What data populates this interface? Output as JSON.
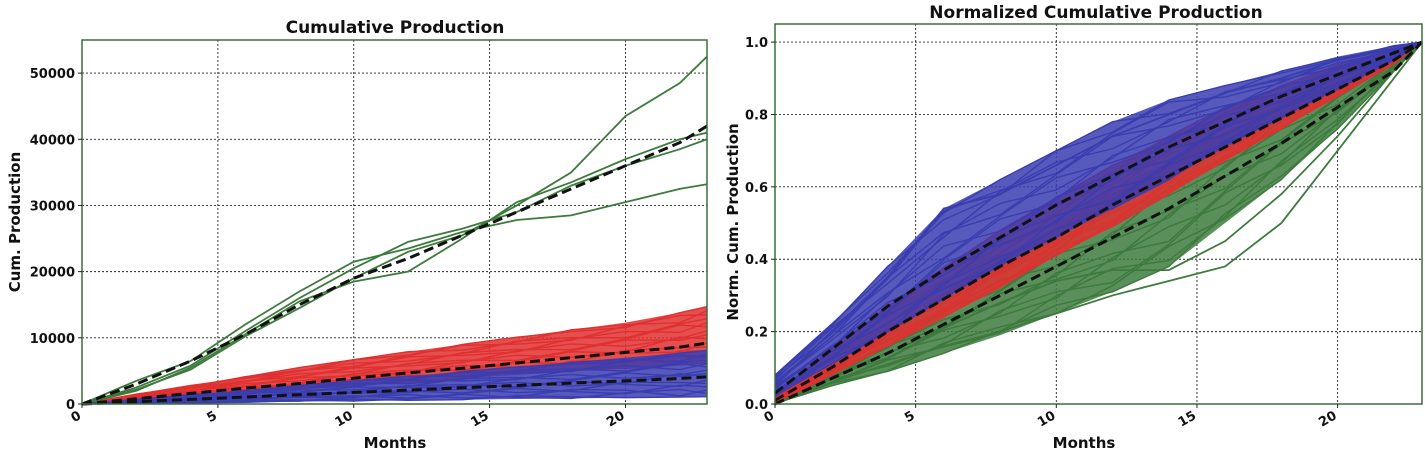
{
  "colors": {
    "green": "#3d7a3d",
    "red": "#e03030",
    "blue": "#3a3db0",
    "mean": "#111111",
    "frame": "#3b6e3b"
  },
  "chart_data": [
    {
      "type": "line",
      "title": "Cumulative Production",
      "xlabel": "Months",
      "ylabel": "Cum. Production",
      "xlim": [
        0,
        23
      ],
      "ylim": [
        0,
        55000
      ],
      "xticks": [
        0,
        5,
        10,
        15,
        20
      ],
      "yticks": [
        0,
        10000,
        20000,
        30000,
        40000,
        50000
      ],
      "grid": true,
      "x": [
        0,
        2,
        4,
        6,
        8,
        10,
        12,
        14,
        16,
        18,
        20,
        22,
        23
      ],
      "bands": [
        {
          "color": "red",
          "lower": [
            0,
            400,
            900,
            1500,
            2100,
            2700,
            3300,
            3900,
            4400,
            4900,
            5400,
            5900,
            6200
          ],
          "upper": [
            0,
            1500,
            2800,
            4200,
            5500,
            6700,
            7900,
            9000,
            10100,
            11200,
            12300,
            13800,
            14700
          ]
        },
        {
          "color": "blue",
          "lower": [
            0,
            50,
            150,
            250,
            350,
            450,
            550,
            650,
            750,
            850,
            950,
            1050,
            1100
          ],
          "upper": [
            0,
            700,
            1400,
            2100,
            2800,
            3500,
            4200,
            4900,
            5600,
            6300,
            7000,
            7700,
            8100
          ]
        }
      ],
      "series": [
        {
          "color": "green",
          "values": [
            0,
            3500,
            6500,
            12000,
            17000,
            21500,
            23500,
            26000,
            27800,
            28500,
            30500,
            32500,
            33200
          ]
        },
        {
          "color": "green",
          "values": [
            0,
            2000,
            5500,
            10500,
            15500,
            18500,
            20000,
            25000,
            30500,
            33500,
            37000,
            40000,
            41000
          ]
        },
        {
          "color": "green",
          "values": [
            0,
            2500,
            5800,
            11000,
            16000,
            20500,
            24500,
            26500,
            29000,
            33000,
            36000,
            38500,
            40000
          ]
        },
        {
          "color": "green",
          "values": [
            0,
            2200,
            5200,
            10200,
            14500,
            19000,
            23000,
            25500,
            30000,
            35000,
            43500,
            48500,
            52500
          ]
        },
        {
          "color": "mean",
          "dashed": true,
          "values": [
            0,
            3000,
            6500,
            10500,
            15000,
            19000,
            22000,
            25500,
            29000,
            32500,
            36000,
            39500,
            42000
          ]
        },
        {
          "color": "mean",
          "dashed": true,
          "values": [
            0,
            800,
            1600,
            2400,
            3100,
            3900,
            4700,
            5400,
            6200,
            7000,
            7800,
            8600,
            9200
          ]
        },
        {
          "color": "mean",
          "dashed": true,
          "values": [
            0,
            350,
            700,
            1050,
            1400,
            1750,
            2100,
            2450,
            2800,
            3150,
            3500,
            3850,
            4100
          ]
        }
      ]
    },
    {
      "type": "line",
      "title": "Normalized Cumulative Production",
      "xlabel": "Months",
      "ylabel": "Norm. Cum. Production",
      "xlim": [
        0,
        23
      ],
      "ylim": [
        0,
        1.05
      ],
      "xticks": [
        0,
        5,
        10,
        15,
        20
      ],
      "yticks": [
        0.0,
        0.2,
        0.4,
        0.6,
        0.8,
        1.0
      ],
      "grid": true,
      "x": [
        0,
        2,
        4,
        6,
        8,
        10,
        12,
        14,
        16,
        18,
        20,
        22,
        23
      ],
      "bands": [
        {
          "color": "green",
          "lower": [
            0.0,
            0.05,
            0.09,
            0.14,
            0.19,
            0.25,
            0.31,
            0.38,
            0.5,
            0.62,
            0.76,
            0.92,
            1.0
          ],
          "upper": [
            0.02,
            0.11,
            0.21,
            0.3,
            0.4,
            0.49,
            0.58,
            0.67,
            0.75,
            0.83,
            0.9,
            0.97,
            1.0
          ]
        },
        {
          "color": "red",
          "lower": [
            0.0,
            0.08,
            0.16,
            0.24,
            0.32,
            0.41,
            0.49,
            0.58,
            0.67,
            0.76,
            0.85,
            0.94,
            1.0
          ],
          "upper": [
            0.03,
            0.15,
            0.27,
            0.38,
            0.48,
            0.57,
            0.66,
            0.74,
            0.82,
            0.88,
            0.94,
            0.98,
            1.0
          ]
        },
        {
          "color": "blue",
          "lower": [
            0.02,
            0.11,
            0.2,
            0.29,
            0.38,
            0.46,
            0.54,
            0.62,
            0.71,
            0.79,
            0.87,
            0.95,
            1.0
          ],
          "upper": [
            0.08,
            0.22,
            0.38,
            0.54,
            0.62,
            0.7,
            0.78,
            0.84,
            0.88,
            0.92,
            0.96,
            0.99,
            1.0
          ]
        }
      ],
      "series": [
        {
          "color": "green",
          "values": [
            0.0,
            0.06,
            0.11,
            0.16,
            0.2,
            0.25,
            0.3,
            0.34,
            0.38,
            0.5,
            0.7,
            0.9,
            1.0
          ]
        },
        {
          "color": "green",
          "values": [
            0.0,
            0.07,
            0.14,
            0.21,
            0.28,
            0.34,
            0.37,
            0.37,
            0.45,
            0.58,
            0.74,
            0.92,
            1.0
          ]
        },
        {
          "color": "blue",
          "values": [
            0.05,
            0.2,
            0.35,
            0.54,
            0.58,
            0.66,
            0.74,
            0.8,
            0.86,
            0.9,
            0.95,
            0.98,
            1.0
          ]
        },
        {
          "color": "mean",
          "dashed": true,
          "values": [
            0.0,
            0.07,
            0.14,
            0.22,
            0.3,
            0.38,
            0.46,
            0.54,
            0.63,
            0.72,
            0.82,
            0.92,
            1.0
          ]
        },
        {
          "color": "mean",
          "dashed": true,
          "values": [
            0.01,
            0.1,
            0.2,
            0.29,
            0.38,
            0.46,
            0.55,
            0.63,
            0.71,
            0.79,
            0.87,
            0.95,
            1.0
          ]
        },
        {
          "color": "mean",
          "dashed": true,
          "values": [
            0.03,
            0.15,
            0.27,
            0.37,
            0.46,
            0.55,
            0.63,
            0.71,
            0.78,
            0.85,
            0.91,
            0.97,
            1.0
          ]
        }
      ]
    }
  ]
}
